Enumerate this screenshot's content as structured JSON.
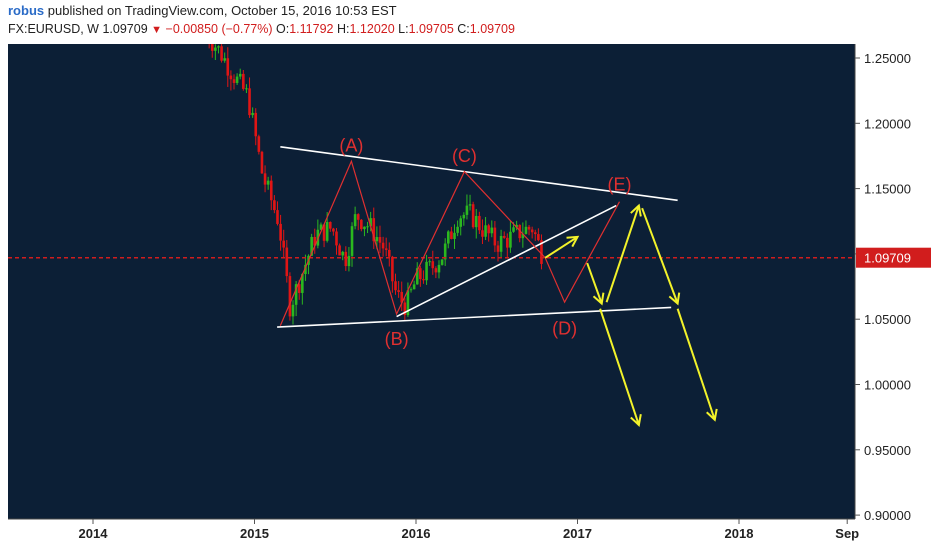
{
  "header": {
    "author": "robus",
    "published_text": "published on TradingView.com, October 15, 2016 10:53 EST",
    "symbol": "FX:EURUSD, W",
    "last": "1.09709",
    "change": "−0.00850 (−0.77%)",
    "open_label": "O:",
    "open": "1.11792",
    "high_label": "H:",
    "high": "1.12020",
    "low_label": "L:",
    "low": "1.09705",
    "close_label": "C:",
    "close": "1.09709"
  },
  "colors": {
    "background": "#0c1f36",
    "up_candle": "#2bb81f",
    "down_candle": "#e01515",
    "pattern": "#e03030",
    "trendline": "#ffffff",
    "projection": "#f2f22a",
    "price_line": "#d11d1d",
    "price_tag": "#d11d1d"
  },
  "chart_data": {
    "type": "candlestick",
    "symbol": "FX:EURUSD",
    "interval": "W",
    "ylim": [
      0.9,
      1.27
    ],
    "xlim": [
      "2013-06",
      "2018-07"
    ],
    "y_ticks": [
      "1.25000",
      "1.20000",
      "1.15000",
      "1.10000",
      "1.05000",
      "1.00000",
      "0.95000",
      "0.90000"
    ],
    "x_ticks": [
      "2014",
      "2015",
      "2016",
      "2017",
      "2018",
      "Sep"
    ],
    "x_tick_values": [
      2014.0,
      2015.0,
      2016.0,
      2017.0,
      2018.0,
      2018.67
    ],
    "last_price": 1.09709,
    "last_price_label": "1.09709",
    "candle_path": [
      [
        2014.7,
        1.27
      ],
      [
        2014.8,
        1.252
      ],
      [
        2014.88,
        1.235
      ],
      [
        2014.96,
        1.22
      ],
      [
        2015.05,
        1.16
      ],
      [
        2015.15,
        1.125
      ],
      [
        2015.22,
        1.06
      ],
      [
        2015.28,
        1.08
      ],
      [
        2015.38,
        1.115
      ],
      [
        2015.48,
        1.12
      ],
      [
        2015.56,
        1.095
      ],
      [
        2015.63,
        1.13
      ],
      [
        2015.72,
        1.12
      ],
      [
        2015.8,
        1.105
      ],
      [
        2015.88,
        1.068
      ],
      [
        2015.94,
        1.06
      ],
      [
        2016.0,
        1.08
      ],
      [
        2016.1,
        1.09
      ],
      [
        2016.17,
        1.1
      ],
      [
        2016.26,
        1.13
      ],
      [
        2016.34,
        1.13
      ],
      [
        2016.42,
        1.118
      ],
      [
        2016.5,
        1.108
      ],
      [
        2016.58,
        1.112
      ],
      [
        2016.66,
        1.118
      ],
      [
        2016.72,
        1.12
      ],
      [
        2016.79,
        1.097
      ]
    ],
    "wave_labels": [
      "(A)",
      "(B)",
      "(C)",
      "(D)",
      "(E)"
    ],
    "wave_path": [
      [
        2015.16,
        1.045
      ],
      [
        2015.6,
        1.171
      ],
      [
        2015.88,
        1.054
      ],
      [
        2016.3,
        1.163
      ],
      [
        2016.8,
        1.097
      ],
      [
        2016.92,
        1.063
      ],
      [
        2017.26,
        1.14
      ]
    ],
    "trendlines": [
      [
        [
          2015.16,
          1.182
        ],
        [
          2017.62,
          1.141
        ]
      ],
      [
        [
          2015.14,
          1.044
        ],
        [
          2017.58,
          1.059
        ]
      ],
      [
        [
          2015.88,
          1.052
        ],
        [
          2017.24,
          1.137
        ]
      ]
    ],
    "projection_arrows": [
      [
        [
          2016.8,
          1.097
        ],
        [
          2017.0,
          1.113
        ]
      ],
      [
        [
          2017.06,
          1.093
        ],
        [
          2017.15,
          1.062
        ]
      ],
      [
        [
          2017.18,
          1.063
        ],
        [
          2017.38,
          1.137
        ]
      ],
      [
        [
          2017.4,
          1.135
        ],
        [
          2017.62,
          1.062
        ]
      ],
      [
        [
          2017.14,
          1.058
        ],
        [
          2017.38,
          0.969
        ]
      ],
      [
        [
          2017.62,
          1.058
        ],
        [
          2017.85,
          0.973
        ]
      ]
    ]
  }
}
